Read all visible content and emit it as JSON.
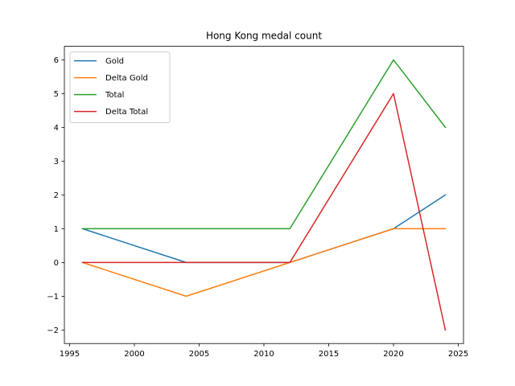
{
  "chart_data": {
    "type": "line",
    "title": "Hong Kong medal count",
    "xlabel": "",
    "ylabel": "",
    "x": [
      1996,
      2004,
      2012,
      2020,
      2024
    ],
    "xlim": [
      1994.6,
      2025.4
    ],
    "ylim": [
      -2.4,
      6.4
    ],
    "xticks": [
      1995,
      2000,
      2005,
      2010,
      2015,
      2020,
      2025
    ],
    "yticks": [
      -2,
      -1,
      0,
      1,
      2,
      3,
      4,
      5,
      6
    ],
    "ytick_labels": [
      "−2",
      "−1",
      "0",
      "1",
      "2",
      "3",
      "4",
      "5",
      "6"
    ],
    "grid": false,
    "legend_position": "top-left",
    "series": [
      {
        "name": "Gold",
        "color": "#1f77b4",
        "values": [
          1,
          0,
          0,
          1,
          2
        ]
      },
      {
        "name": "Delta Gold",
        "color": "#ff7f0e",
        "values": [
          0,
          -1,
          0,
          1,
          1
        ]
      },
      {
        "name": "Total",
        "color": "#2ca02c",
        "values": [
          1,
          1,
          1,
          6,
          4
        ]
      },
      {
        "name": "Delta Total",
        "color": "#d62728",
        "values": [
          0,
          0,
          0,
          5,
          -2
        ]
      }
    ]
  }
}
